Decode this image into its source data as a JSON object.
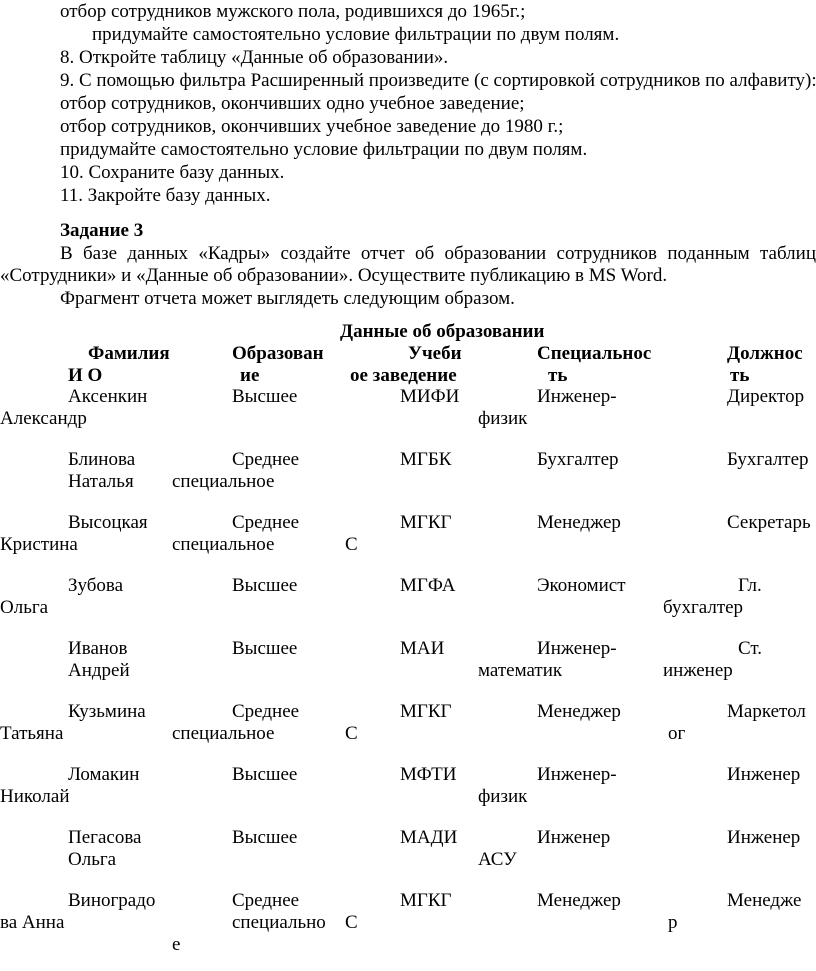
{
  "instructions": [
    "отбор сотрудников мужского пола, родившихся до 1965г.;",
    "придумайте самостоятельно условие фильтрации по двум полям.",
    "8. Откройте таблицу «Данные об образовании».",
    "9. С помощью фильтра Расширенный произведите (с сортировкой сотрудников по алфавиту):",
    "отбор сотрудников, окончивших одно учебное заведение;",
    "отбор сотрудников, окончивших учебное заведение до 1980 г.;",
    "придумайте самостоятельно условие фильтрации по двум полям.",
    "10. Сохраните базу данных.",
    "11. Закройте базу данных."
  ],
  "task3": {
    "heading": "Задание 3",
    "para1_line1": "В базе данных «Кадры» создайте отчет об образовании сотрудников поданным таблиц",
    "para1_line2": "«Сотрудники» и «Данные об образовании». Осуществите публикацию в MS Word.",
    "para2": "Фрагмент отчета может выглядеть следующим образом."
  },
  "report": {
    "title": "Данные об образовании",
    "headers": [
      [
        "Фамилия",
        "И О"
      ],
      [
        "Образован",
        "ие"
      ],
      [
        "Учеби",
        "ое заведение"
      ],
      [
        "Специальнос",
        "ть"
      ],
      [
        "Должнос",
        "ть"
      ]
    ],
    "rows": [
      [
        [
          "Аксенкин",
          "Александр"
        ],
        [
          "Высшее"
        ],
        [
          "МИФИ"
        ],
        [
          "Инженер-",
          "физик"
        ],
        [
          "Директор"
        ]
      ],
      [
        [
          "Блинова",
          "Наталья"
        ],
        [
          "Среднее",
          "специальное"
        ],
        [
          "МГБК"
        ],
        [
          "Бухгалтер"
        ],
        [
          "Бухгалтер"
        ]
      ],
      [
        [
          "Высоцкая",
          "Кристина"
        ],
        [
          "Среднее",
          "специальное"
        ],
        [
          "МГКГ",
          "С"
        ],
        [
          "Менеджер"
        ],
        [
          "Секретарь"
        ]
      ],
      [
        [
          "Зубова",
          "Ольга"
        ],
        [
          "Высшее"
        ],
        [
          "МГФА"
        ],
        [
          "Экономист"
        ],
        [
          "Гл.",
          "бухгалтер"
        ]
      ],
      [
        [
          "Иванов",
          "Андрей"
        ],
        [
          "Высшее"
        ],
        [
          "МАИ"
        ],
        [
          "Инженер-",
          "математик"
        ],
        [
          "Ст.",
          "инженер"
        ]
      ],
      [
        [
          "Кузьмина",
          "Татьяна"
        ],
        [
          "Среднее",
          "специальное"
        ],
        [
          "МГКГ",
          "С"
        ],
        [
          "Менеджер"
        ],
        [
          "Маркетол",
          "ог"
        ]
      ],
      [
        [
          "Ломакин",
          "Николай"
        ],
        [
          "Высшее"
        ],
        [
          "МФТИ"
        ],
        [
          "Инженер-",
          "физик"
        ],
        [
          "Инженер"
        ]
      ],
      [
        [
          "Пегасова",
          "Ольга"
        ],
        [
          "Высшее"
        ],
        [
          "МАДИ"
        ],
        [
          "Инженер",
          "АСУ"
        ],
        [
          "Инженер"
        ]
      ],
      [
        [
          "Виноградо",
          "ва Анна"
        ],
        [
          "Среднее",
          "специально",
          "е"
        ],
        [
          "МГКГ",
          "С"
        ],
        [
          "Менеджер"
        ],
        [
          "Менедже",
          "р"
        ]
      ]
    ]
  }
}
